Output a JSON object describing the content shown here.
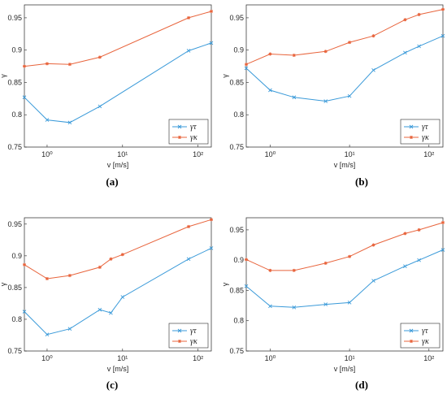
{
  "chart_data": [
    {
      "type": "line",
      "caption": "(a)",
      "xlabel": "v [m/s]",
      "ylabel": "γ",
      "xscale": "log",
      "xlim": [
        0.5,
        150
      ],
      "ylim": [
        0.75,
        0.97
      ],
      "xticks": [
        1,
        10,
        100
      ],
      "xtick_labels": [
        "10⁰",
        "10¹",
        "10²"
      ],
      "yticks": [
        0.75,
        0.8,
        0.85,
        0.9,
        0.95
      ],
      "ytick_labels": [
        "0.75",
        "0.8",
        "0.85",
        "0.9",
        "0.95"
      ],
      "grid": true,
      "legend_position": "bottom-right",
      "series": [
        {
          "name": "γτ",
          "color": "#3a9ad9",
          "marker": "x",
          "x": [
            0.5,
            1,
            2,
            5,
            75,
            150
          ],
          "y": [
            0.827,
            0.792,
            0.788,
            0.813,
            0.899,
            0.911
          ]
        },
        {
          "name": "γκ",
          "color": "#e8643c",
          "marker": "*",
          "x": [
            0.5,
            1,
            2,
            5,
            75,
            150
          ],
          "y": [
            0.875,
            0.879,
            0.878,
            0.889,
            0.95,
            0.96
          ]
        }
      ]
    },
    {
      "type": "line",
      "caption": "(b)",
      "xlabel": "v [m/s]",
      "ylabel": "γ",
      "xscale": "log",
      "xlim": [
        0.5,
        150
      ],
      "ylim": [
        0.75,
        0.97
      ],
      "xticks": [
        1,
        10,
        100
      ],
      "xtick_labels": [
        "10⁰",
        "10¹",
        "10²"
      ],
      "yticks": [
        0.75,
        0.8,
        0.85,
        0.9,
        0.95
      ],
      "ytick_labels": [
        "0.75",
        "0.8",
        "0.85",
        "0.9",
        "0.95"
      ],
      "grid": true,
      "legend_position": "bottom-right",
      "series": [
        {
          "name": "γτ",
          "color": "#3a9ad9",
          "marker": "x",
          "x": [
            0.5,
            1,
            2,
            5,
            10,
            20,
            50,
            75,
            150
          ],
          "y": [
            0.872,
            0.838,
            0.827,
            0.821,
            0.829,
            0.869,
            0.896,
            0.906,
            0.922
          ]
        },
        {
          "name": "γκ",
          "color": "#e8643c",
          "marker": "*",
          "x": [
            0.5,
            1,
            2,
            5,
            10,
            20,
            50,
            75,
            150
          ],
          "y": [
            0.878,
            0.894,
            0.892,
            0.898,
            0.912,
            0.922,
            0.947,
            0.955,
            0.963
          ]
        }
      ]
    },
    {
      "type": "line",
      "caption": "(c)",
      "xlabel": "v [m/s]",
      "ylabel": "γ",
      "xscale": "log",
      "xlim": [
        0.5,
        150
      ],
      "ylim": [
        0.75,
        0.96
      ],
      "xticks": [
        1,
        10,
        100
      ],
      "xtick_labels": [
        "10⁰",
        "10¹",
        "10²"
      ],
      "yticks": [
        0.75,
        0.8,
        0.85,
        0.9,
        0.95
      ],
      "ytick_labels": [
        "0.75",
        "0.8",
        "0.85",
        "0.9",
        "0.95"
      ],
      "grid": true,
      "legend_position": "bottom-right",
      "series": [
        {
          "name": "γτ",
          "color": "#3a9ad9",
          "marker": "x",
          "x": [
            0.5,
            1,
            2,
            5,
            7,
            10,
            75,
            150
          ],
          "y": [
            0.812,
            0.776,
            0.785,
            0.815,
            0.81,
            0.835,
            0.895,
            0.912
          ]
        },
        {
          "name": "γκ",
          "color": "#e8643c",
          "marker": "*",
          "x": [
            0.5,
            1,
            2,
            5,
            7,
            10,
            75,
            150
          ],
          "y": [
            0.886,
            0.864,
            0.869,
            0.882,
            0.895,
            0.902,
            0.946,
            0.957
          ]
        }
      ]
    },
    {
      "type": "line",
      "caption": "(d)",
      "xlabel": "v [m/s]",
      "ylabel": "γ",
      "xscale": "log",
      "xlim": [
        0.5,
        150
      ],
      "ylim": [
        0.75,
        0.97
      ],
      "xticks": [
        1,
        10,
        100
      ],
      "xtick_labels": [
        "10⁰",
        "10¹",
        "10²"
      ],
      "yticks": [
        0.75,
        0.8,
        0.85,
        0.9,
        0.95
      ],
      "ytick_labels": [
        "0.75",
        "0.8",
        "0.85",
        "0.9",
        "0.95"
      ],
      "grid": true,
      "legend_position": "bottom-right",
      "series": [
        {
          "name": "γτ",
          "color": "#3a9ad9",
          "marker": "x",
          "x": [
            0.5,
            1,
            2,
            5,
            10,
            20,
            50,
            75,
            150
          ],
          "y": [
            0.857,
            0.824,
            0.822,
            0.827,
            0.83,
            0.866,
            0.89,
            0.9,
            0.917
          ]
        },
        {
          "name": "γκ",
          "color": "#e8643c",
          "marker": "*",
          "x": [
            0.5,
            1,
            2,
            5,
            10,
            20,
            50,
            75,
            150
          ],
          "y": [
            0.901,
            0.883,
            0.883,
            0.895,
            0.906,
            0.925,
            0.944,
            0.95,
            0.962
          ]
        }
      ]
    }
  ]
}
